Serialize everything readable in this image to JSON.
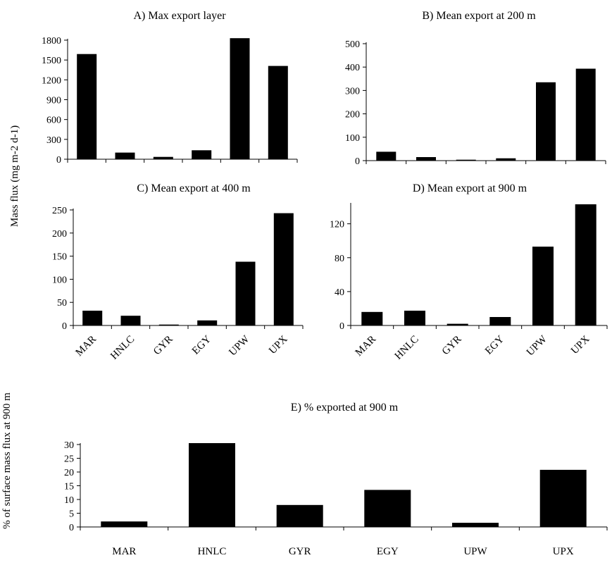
{
  "figure": {
    "ylabel_top": "Mass flux (mg m-2 d-1)",
    "ylabel_bottom": "% of surface mass flux at 900 m"
  },
  "chart_data": [
    {
      "id": "A",
      "type": "bar",
      "title": "A) Max export layer",
      "categories": [
        "MAR",
        "HNLC",
        "GYR",
        "EGY",
        "UPW",
        "UPX"
      ],
      "values": [
        1590,
        100,
        35,
        135,
        1830,
        1410
      ],
      "ylim": [
        0,
        1800
      ],
      "yticks": [
        0,
        300,
        600,
        900,
        1200,
        1500,
        1800
      ],
      "show_categories": false
    },
    {
      "id": "B",
      "type": "bar",
      "title": "B) Mean export at 200 m",
      "categories": [
        "MAR",
        "HNLC",
        "GYR",
        "EGY",
        "UPW",
        "UPX"
      ],
      "values": [
        38,
        15,
        4,
        10,
        335,
        393
      ],
      "ylim": [
        0,
        500
      ],
      "yticks": [
        0,
        100,
        200,
        300,
        400,
        500
      ],
      "show_categories": false
    },
    {
      "id": "C",
      "type": "bar",
      "title": "C) Mean export at 400 m",
      "categories": [
        "MAR",
        "HNLC",
        "GYR",
        "EGY",
        "UPW",
        "UPX"
      ],
      "values": [
        32,
        21,
        2,
        11,
        138,
        243
      ],
      "ylim": [
        0,
        250
      ],
      "yticks": [
        0,
        50,
        100,
        150,
        200,
        250
      ],
      "show_categories": true
    },
    {
      "id": "D",
      "type": "bar",
      "title": "D) Mean export at 900 m",
      "categories": [
        "MAR",
        "HNLC",
        "GYR",
        "EGY",
        "UPW",
        "UPX"
      ],
      "values": [
        16,
        17.5,
        2,
        10,
        93,
        143
      ],
      "ylim": [
        0,
        143
      ],
      "yticks": [
        0,
        40,
        80,
        120
      ],
      "show_categories": true
    },
    {
      "id": "E",
      "type": "bar",
      "title": "E) % exported at 900 m",
      "categories": [
        "MAR",
        "HNLC",
        "GYR",
        "EGY",
        "UPW",
        "UPX"
      ],
      "values": [
        2,
        30.5,
        8,
        13.5,
        1.5,
        20.8
      ],
      "ylim": [
        0,
        30
      ],
      "yticks": [
        0,
        5,
        10,
        15,
        20,
        25,
        30
      ],
      "show_categories": true
    }
  ]
}
